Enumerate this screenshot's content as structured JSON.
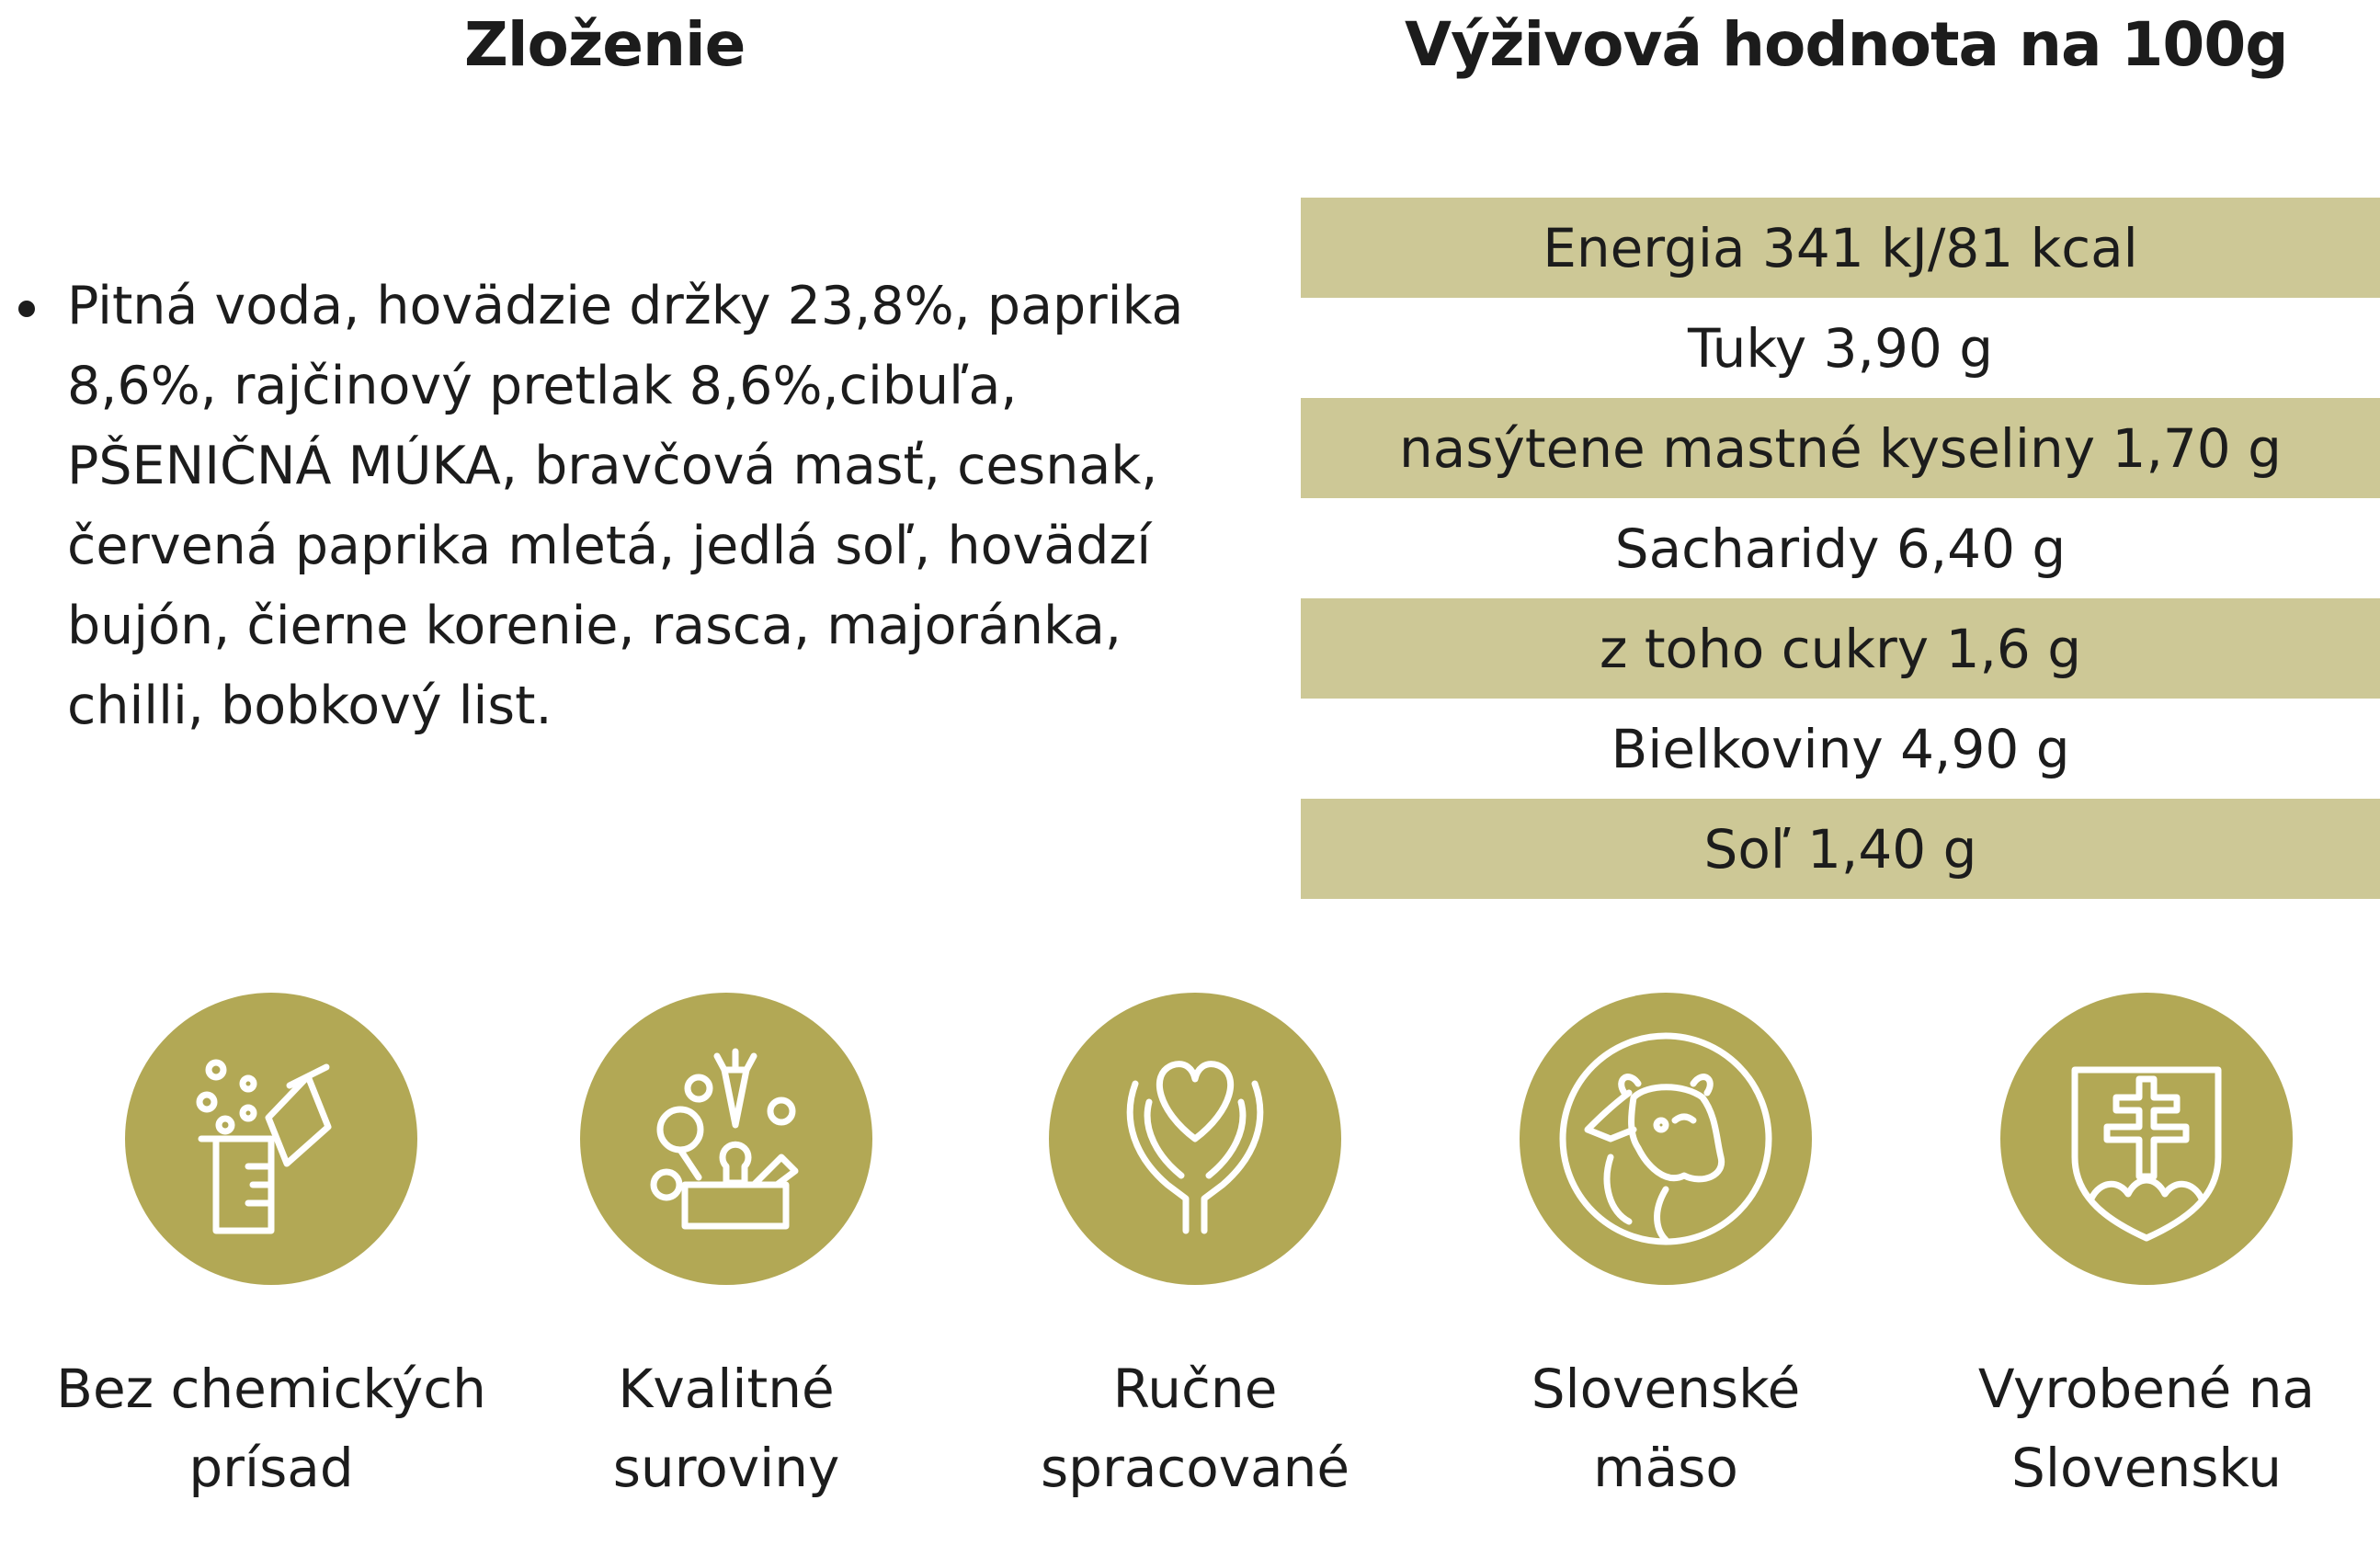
{
  "headings": {
    "ingredients": "Zloženie",
    "nutrition": "Výživová hodnota na 100g"
  },
  "ingredients": {
    "part1": "Pitná voda, hovädzie držky 23,8%, paprika 8,6%, rajčinový pretlak 8,6%,cibuľa, ",
    "allergen": "PŠENIČNÁ MÚKA",
    "part2": ", bravčová masť, cesnak, červená paprika mletá, jedlá soľ, hovädzí bujón, čierne korenie, rasca, majoránka, chilli, bobkový list."
  },
  "nutrition_rows": [
    "Energia 341 kJ/81 kcal",
    "Tuky 3,90 g",
    "nasýtene mastné kyseliny 1,70 g",
    "Sacharidy 6,40 g",
    "z toho cukry 1,6 g",
    "Bielkoviny 4,90 g",
    "Soľ 1,40 g"
  ],
  "badges": [
    {
      "line1": "Bez chemických",
      "line2": "prísad",
      "icon": "flask-beaker-icon"
    },
    {
      "line1": "Kvalitné",
      "line2": "suroviny",
      "icon": "vegetables-box-icon"
    },
    {
      "line1": "Ručne",
      "line2": "spracované",
      "icon": "heart-hands-icon"
    },
    {
      "line1": "Slovenské",
      "line2": "mäso",
      "icon": "cow-icon"
    },
    {
      "line1": "Vyrobené na",
      "line2": "Slovensku",
      "icon": "slovak-coat-of-arms-icon"
    }
  ],
  "colors": {
    "accent": "#b2a855",
    "row_shade": "#cdc896",
    "text": "#1c1c1c"
  }
}
